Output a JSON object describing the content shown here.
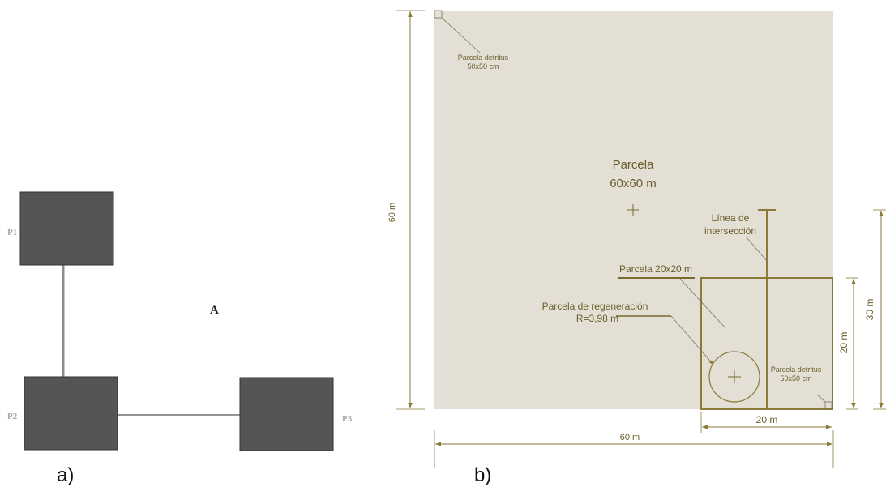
{
  "colors": {
    "plot_fill": "#e3dfd5",
    "line": "#8a7a3a",
    "label": "#6b5d2a",
    "square_a": "#555555"
  },
  "panel_a": {
    "caption": "a)",
    "center_label": "A",
    "plots": [
      {
        "id": "p1",
        "label": "P1"
      },
      {
        "id": "p2",
        "label": "P2"
      },
      {
        "id": "p3",
        "label": "P3"
      }
    ]
  },
  "panel_b": {
    "caption": "b)",
    "main_plot": {
      "title": "Parcela",
      "size": "60x60 m"
    },
    "detritus_top": {
      "line1": "Parcela detritus",
      "line2": "50x50 cm"
    },
    "detritus_bottom": {
      "line1": "Parcela detritus",
      "line2": "50x50 cm"
    },
    "intersection_line": {
      "line1": "Línea de",
      "line2": "intersección"
    },
    "subplot": {
      "label": "Parcela 20x20 m"
    },
    "regeneration": {
      "line1": "Parcela de regeneración",
      "line2": "R=3,98 m"
    },
    "dimensions": {
      "height_main": "60 m",
      "width_main": "60 m",
      "width_sub": "20 m",
      "height_sub": "20 m",
      "height_line": "30 m"
    }
  }
}
